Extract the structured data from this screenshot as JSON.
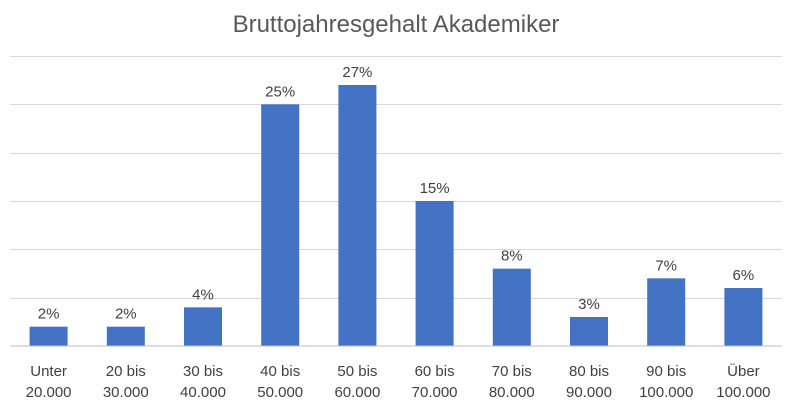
{
  "chart_data": {
    "type": "bar",
    "title": "Bruttojahresgehalt Akademiker",
    "xlabel": "",
    "ylabel": "",
    "categories": [
      [
        "Unter",
        "20.000"
      ],
      [
        "20 bis",
        "30.000"
      ],
      [
        "30 bis",
        "40.000"
      ],
      [
        "40 bis",
        "50.000"
      ],
      [
        "50 bis",
        "60.000"
      ],
      [
        "60 bis",
        "70.000"
      ],
      [
        "70 bis",
        "80.000"
      ],
      [
        "80 bis",
        "90.000"
      ],
      [
        "90 bis",
        "100.000"
      ],
      [
        "Über",
        "100.000"
      ]
    ],
    "values": [
      2,
      2,
      4,
      25,
      27,
      15,
      8,
      3,
      7,
      6
    ],
    "value_labels": [
      "2%",
      "2%",
      "4%",
      "25%",
      "27%",
      "15%",
      "8%",
      "3%",
      "7%",
      "6%"
    ],
    "ylim": [
      0,
      30
    ],
    "grid": true,
    "legend": "none",
    "bar_color": "#4472C4"
  }
}
